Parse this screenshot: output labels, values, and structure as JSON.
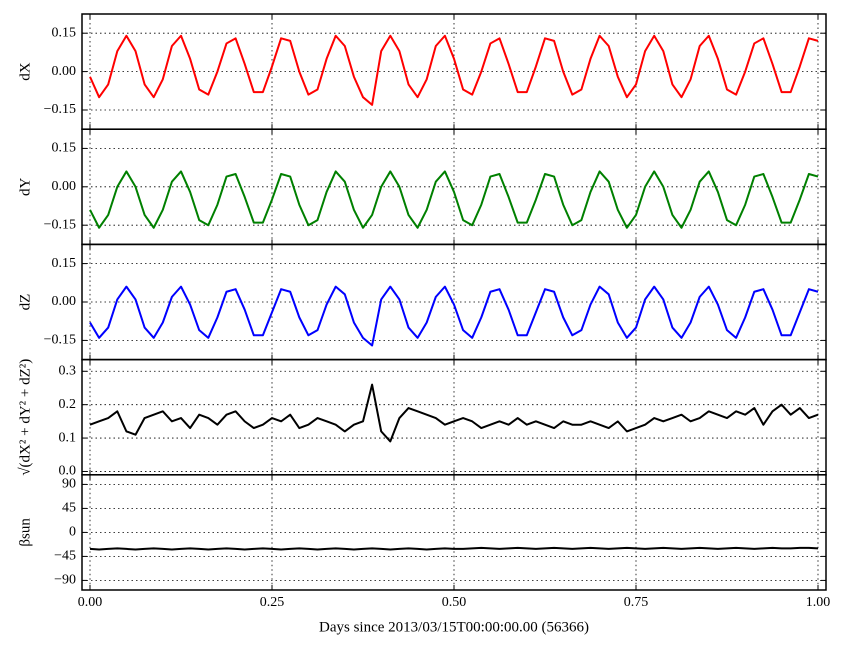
{
  "chart_data": [
    {
      "type": "line",
      "ylabel": "dX",
      "ylim": [
        -0.225,
        0.225
      ],
      "yticks": [
        {
          "value": -0.15,
          "label": "−0.15"
        },
        {
          "value": 0,
          "label": "0.00"
        },
        0.15
      ],
      "grid": true,
      "series": [
        {
          "color": "#ff0000",
          "values": [
            -0.02,
            -0.1,
            -0.05,
            0.08,
            0.14,
            0.08,
            -0.05,
            -0.1,
            -0.03,
            0.1,
            0.14,
            0.05,
            -0.07,
            -0.09,
            0.0,
            0.11,
            0.13,
            0.03,
            -0.08,
            -0.08,
            0.02,
            0.13,
            0.12,
            0.0,
            -0.09,
            -0.07,
            0.05,
            0.14,
            0.1,
            -0.02,
            -0.1,
            -0.13,
            0.08,
            0.14,
            0.08,
            -0.05,
            -0.1,
            -0.03,
            0.1,
            0.14,
            0.05,
            -0.07,
            -0.09,
            0.0,
            0.11,
            0.13,
            0.03,
            -0.08,
            -0.08,
            0.02,
            0.13,
            0.12,
            0.0,
            -0.09,
            -0.07,
            0.05,
            0.14,
            0.1,
            -0.02,
            -0.1,
            -0.05,
            0.08,
            0.14,
            0.08,
            -0.05,
            -0.1,
            -0.03,
            0.1,
            0.14,
            0.05,
            -0.07,
            -0.09,
            0.0,
            0.11,
            0.13,
            0.03,
            -0.08,
            -0.08,
            0.02,
            0.13,
            0.12
          ]
        }
      ]
    },
    {
      "type": "line",
      "ylabel": "dY",
      "ylim": [
        -0.225,
        0.225
      ],
      "yticks": [
        {
          "value": -0.15,
          "label": "−0.15"
        },
        {
          "value": 0,
          "label": "0.00"
        },
        0.15
      ],
      "grid": true,
      "series": [
        {
          "color": "#008000",
          "values": [
            -0.09,
            -0.16,
            -0.11,
            0.0,
            0.06,
            0.0,
            -0.11,
            -0.16,
            -0.09,
            0.02,
            0.06,
            -0.02,
            -0.13,
            -0.15,
            -0.07,
            0.04,
            0.05,
            -0.04,
            -0.14,
            -0.14,
            -0.05,
            0.05,
            0.04,
            -0.07,
            -0.15,
            -0.13,
            -0.02,
            0.06,
            0.02,
            -0.09,
            -0.16,
            -0.11,
            0.0,
            0.06,
            0.0,
            -0.11,
            -0.16,
            -0.09,
            0.02,
            0.06,
            -0.02,
            -0.13,
            -0.15,
            -0.07,
            0.04,
            0.05,
            -0.04,
            -0.14,
            -0.14,
            -0.05,
            0.05,
            0.04,
            -0.07,
            -0.15,
            -0.13,
            -0.02,
            0.06,
            0.02,
            -0.09,
            -0.16,
            -0.11,
            0.0,
            0.06,
            0.0,
            -0.11,
            -0.16,
            -0.09,
            0.02,
            0.06,
            -0.02,
            -0.13,
            -0.15,
            -0.07,
            0.04,
            0.05,
            -0.04,
            -0.14,
            -0.14,
            -0.05,
            0.05,
            0.04
          ]
        }
      ]
    },
    {
      "type": "line",
      "ylabel": "dZ",
      "ylim": [
        -0.225,
        0.225
      ],
      "yticks": [
        {
          "value": -0.15,
          "label": "−0.15"
        },
        {
          "value": 0,
          "label": "0.00"
        },
        0.15
      ],
      "grid": true,
      "series": [
        {
          "color": "#0000ff",
          "values": [
            -0.08,
            -0.14,
            -0.1,
            0.01,
            0.06,
            0.01,
            -0.1,
            -0.14,
            -0.08,
            0.02,
            0.06,
            -0.01,
            -0.11,
            -0.14,
            -0.06,
            0.04,
            0.05,
            -0.03,
            -0.13,
            -0.13,
            -0.04,
            0.05,
            0.04,
            -0.06,
            -0.13,
            -0.11,
            -0.01,
            0.06,
            0.03,
            -0.08,
            -0.14,
            -0.17,
            0.01,
            0.06,
            0.01,
            -0.1,
            -0.14,
            -0.08,
            0.02,
            0.06,
            -0.01,
            -0.11,
            -0.14,
            -0.06,
            0.04,
            0.05,
            -0.03,
            -0.13,
            -0.13,
            -0.04,
            0.05,
            0.04,
            -0.06,
            -0.13,
            -0.11,
            -0.01,
            0.06,
            0.03,
            -0.08,
            -0.14,
            -0.1,
            0.01,
            0.06,
            0.01,
            -0.1,
            -0.14,
            -0.08,
            0.02,
            0.06,
            -0.01,
            -0.11,
            -0.14,
            -0.06,
            0.04,
            0.05,
            -0.03,
            -0.13,
            -0.13,
            -0.04,
            0.05,
            0.04
          ]
        }
      ]
    },
    {
      "type": "line",
      "ylabel": "√(dX² + dY² + dZ²)",
      "ylim": [
        -0.01,
        0.335
      ],
      "yticks": [
        {
          "value": 0,
          "label": "0.0"
        },
        0.1,
        0.2,
        0.3
      ],
      "grid": true,
      "series": [
        {
          "color": "#000000",
          "values": [
            0.14,
            0.15,
            0.16,
            0.18,
            0.12,
            0.11,
            0.16,
            0.17,
            0.18,
            0.15,
            0.16,
            0.13,
            0.17,
            0.16,
            0.14,
            0.17,
            0.18,
            0.15,
            0.13,
            0.14,
            0.16,
            0.15,
            0.17,
            0.13,
            0.14,
            0.16,
            0.15,
            0.14,
            0.12,
            0.14,
            0.15,
            0.26,
            0.12,
            0.09,
            0.16,
            0.19,
            0.18,
            0.17,
            0.16,
            0.14,
            0.15,
            0.16,
            0.15,
            0.13,
            0.14,
            0.15,
            0.14,
            0.16,
            0.14,
            0.15,
            0.14,
            0.13,
            0.15,
            0.14,
            0.14,
            0.15,
            0.14,
            0.13,
            0.15,
            0.12,
            0.13,
            0.14,
            0.16,
            0.15,
            0.16,
            0.17,
            0.15,
            0.16,
            0.18,
            0.17,
            0.16,
            0.18,
            0.17,
            0.19,
            0.14,
            0.18,
            0.2,
            0.17,
            0.19,
            0.16,
            0.17
          ]
        }
      ]
    },
    {
      "type": "line",
      "ylabel": "βsun",
      "ylim": [
        -108,
        108
      ],
      "yticks": [
        {
          "value": -90,
          "label": "−90"
        },
        {
          "value": -45,
          "label": "−45"
        },
        0,
        45,
        90
      ],
      "grid": true,
      "xlabel": "Days since 2013/03/15T00:00:00.00 (56366)",
      "xlim": [
        -0.011,
        1.011
      ],
      "xticks": [
        {
          "value": 0,
          "label": "0.00"
        },
        0.25,
        {
          "value": 0.5,
          "label": "0.50"
        },
        0.75,
        {
          "value": 1,
          "label": "1.00"
        }
      ],
      "x": [
        0,
        0.0125,
        0.025,
        0.0375,
        0.05,
        0.0625,
        0.075,
        0.0875,
        0.1,
        0.1125,
        0.125,
        0.1375,
        0.15,
        0.1625,
        0.175,
        0.1875,
        0.2,
        0.2125,
        0.225,
        0.2375,
        0.25,
        0.2625,
        0.275,
        0.2875,
        0.3,
        0.3125,
        0.325,
        0.3375,
        0.35,
        0.3625,
        0.375,
        0.3875,
        0.4,
        0.4125,
        0.425,
        0.4375,
        0.45,
        0.4625,
        0.475,
        0.4875,
        0.5,
        0.5125,
        0.525,
        0.5375,
        0.55,
        0.5625,
        0.575,
        0.5875,
        0.6,
        0.6125,
        0.625,
        0.6375,
        0.65,
        0.6625,
        0.675,
        0.6875,
        0.7,
        0.7125,
        0.725,
        0.7375,
        0.75,
        0.7625,
        0.775,
        0.7875,
        0.8,
        0.8125,
        0.825,
        0.8375,
        0.85,
        0.8625,
        0.875,
        0.8875,
        0.9,
        0.9125,
        0.925,
        0.9375,
        0.95,
        0.9625,
        0.975,
        0.9875,
        1
      ],
      "series": [
        {
          "color": "#000000",
          "values": [
            -31,
            -32,
            -31,
            -30,
            -31,
            -32,
            -31,
            -30,
            -31,
            -32,
            -31,
            -30,
            -31,
            -32,
            -31,
            -30,
            -31,
            -32,
            -31,
            -30,
            -31,
            -32,
            -31,
            -30,
            -31,
            -32,
            -31,
            -30,
            -31,
            -32,
            -31,
            -30,
            -31,
            -32,
            -31,
            -30,
            -31,
            -32,
            -31,
            -30,
            -31,
            -31,
            -30,
            -29,
            -30,
            -31,
            -30,
            -29,
            -30,
            -31,
            -30,
            -29,
            -30,
            -31,
            -30,
            -29,
            -30,
            -31,
            -30,
            -29,
            -30,
            -31,
            -30,
            -29,
            -30,
            -31,
            -30,
            -29,
            -30,
            -31,
            -30,
            -29,
            -30,
            -31,
            -30,
            -29,
            -30,
            -30,
            -29,
            -29,
            -30
          ]
        }
      ]
    }
  ]
}
